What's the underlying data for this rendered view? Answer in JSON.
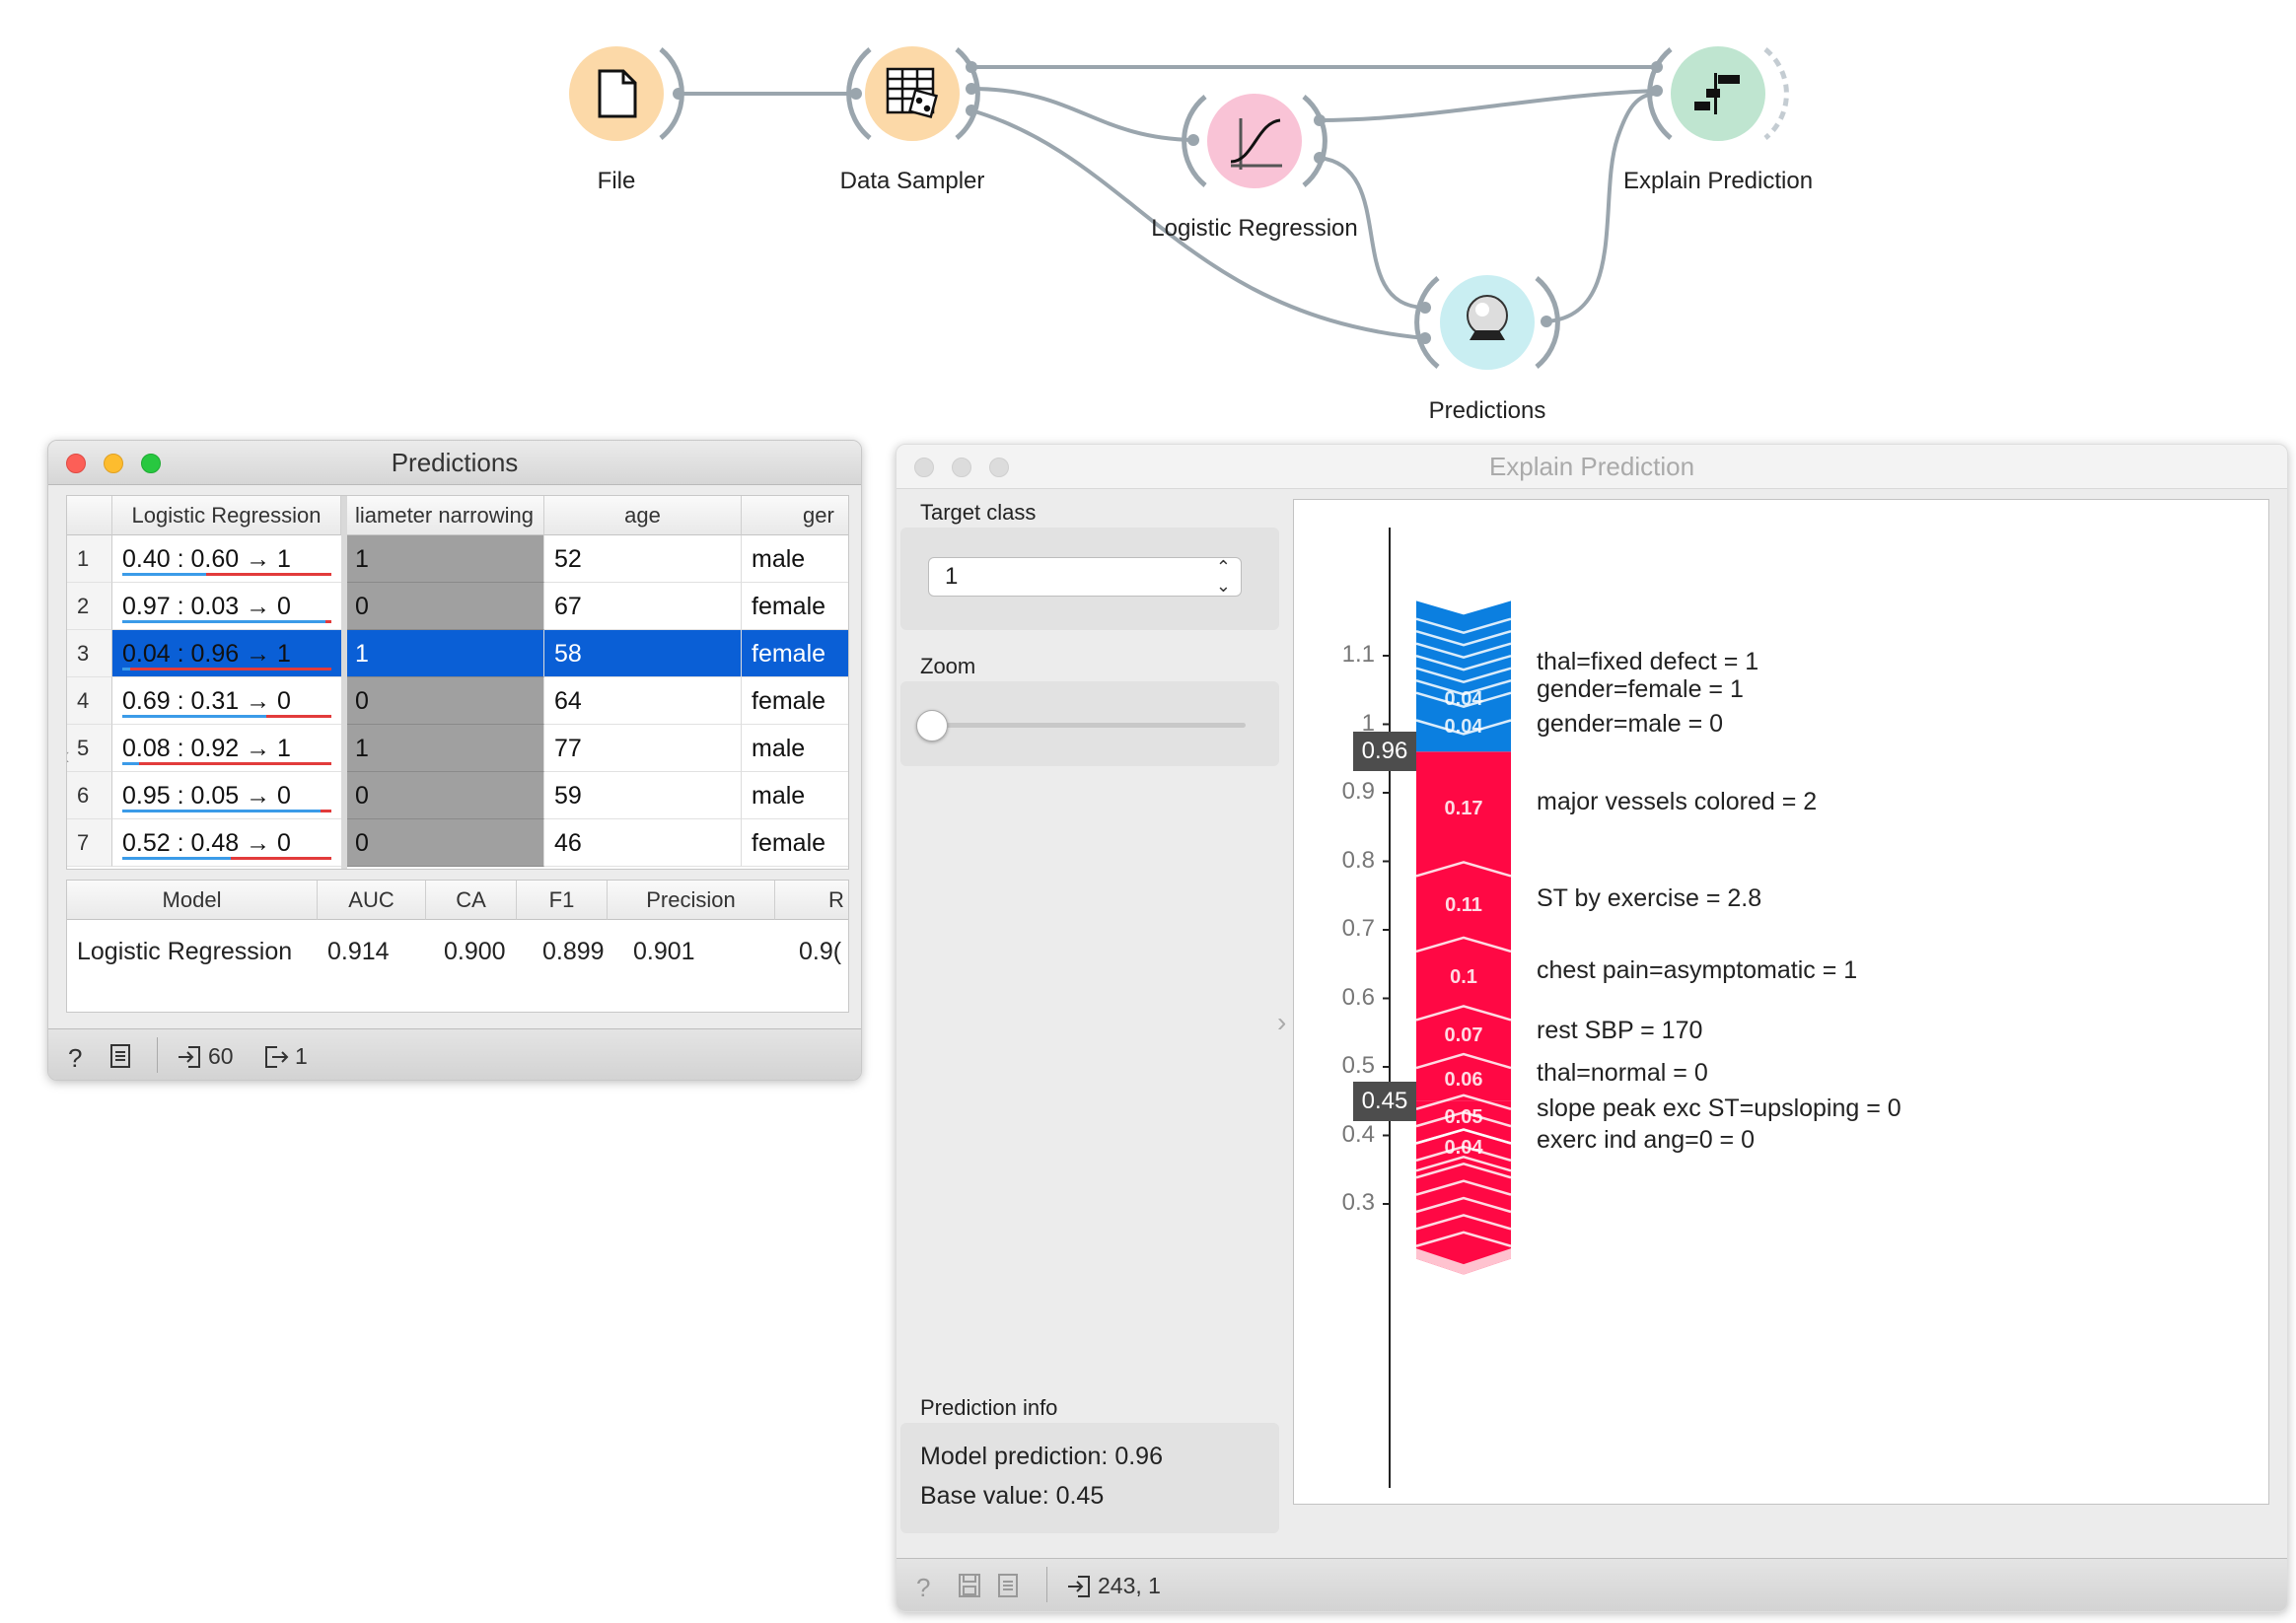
{
  "workflow": {
    "nodes": [
      {
        "label": "File",
        "icon": "file-icon",
        "color": "#fcd9a8"
      },
      {
        "label": "Data Sampler",
        "icon": "data-sampler-icon",
        "color": "#fcd9a8"
      },
      {
        "label": "Logistic Regression",
        "icon": "logistic-regression-icon",
        "color": "#f9c3d6"
      },
      {
        "label": "Predictions",
        "icon": "predictions-icon",
        "color": "#c9eef2"
      },
      {
        "label": "Explain Prediction",
        "icon": "explain-prediction-icon",
        "color": "#bfe5d0"
      }
    ]
  },
  "predictions_window": {
    "title": "Predictions",
    "columns": [
      "Logistic Regression",
      "liameter narrowing",
      "age",
      "ger"
    ],
    "rows": [
      {
        "num": "1",
        "pred": "0.40 : 0.60 → 1",
        "p1": 0.6,
        "target": "1",
        "age": "52",
        "gender": "male"
      },
      {
        "num": "2",
        "pred": "0.97 : 0.03 → 0",
        "p1": 0.03,
        "target": "0",
        "age": "67",
        "gender": "female"
      },
      {
        "num": "3",
        "pred": "0.04 : 0.96 → 1",
        "p1": 0.96,
        "target": "1",
        "age": "58",
        "gender": "female"
      },
      {
        "num": "4",
        "pred": "0.69 : 0.31 → 0",
        "p1": 0.31,
        "target": "0",
        "age": "64",
        "gender": "female"
      },
      {
        "num": "5",
        "pred": "0.08 : 0.92 → 1",
        "p1": 0.92,
        "target": "1",
        "age": "77",
        "gender": "male"
      },
      {
        "num": "6",
        "pred": "0.95 : 0.05 → 0",
        "p1": 0.05,
        "target": "0",
        "age": "59",
        "gender": "male"
      },
      {
        "num": "7",
        "pred": "0.52 : 0.48 → 0",
        "p1": 0.48,
        "target": "0",
        "age": "46",
        "gender": "female"
      }
    ],
    "selected_row": 2,
    "scores": {
      "headers": [
        "Model",
        "AUC",
        "CA",
        "F1",
        "Precision",
        "R"
      ],
      "row": [
        "Logistic Regression",
        "0.914",
        "0.900",
        "0.899",
        "0.901",
        "0.9("
      ]
    },
    "status": {
      "input_count": "60",
      "output_count": "1"
    }
  },
  "explain_window": {
    "title": "Explain Prediction",
    "target_class_label": "Target class",
    "target_class_value": "1",
    "zoom_label": "Zoom",
    "zoom_level": 0.0,
    "prediction_info_label": "Prediction info",
    "model_prediction": "Model prediction: 0.96",
    "base_value": "Base value: 0.45",
    "status_text": "243, 1",
    "colors": {
      "positive": "#ff0844",
      "negative": "#0b7fe0",
      "positive_light": "#ffc2cf"
    },
    "chart_data": {
      "type": "force",
      "axis_ticks": [
        "1.1",
        "1",
        "0.9",
        "0.8",
        "0.7",
        "0.6",
        "0.5",
        "0.4",
        "0.3"
      ],
      "prediction": 0.96,
      "prediction_label": "0.96",
      "base": 0.45,
      "base_label": "0.45",
      "negative_segments": [
        {
          "label": "0.04",
          "value": 0.04
        },
        {
          "label": "0.04",
          "value": 0.04
        }
      ],
      "positive_segments": [
        {
          "label": "0.17",
          "value": 0.17
        },
        {
          "label": "0.11",
          "value": 0.11
        },
        {
          "label": "0.1",
          "value": 0.1
        },
        {
          "label": "0.07",
          "value": 0.07
        },
        {
          "label": "0.06",
          "value": 0.06
        },
        {
          "label": "0.05",
          "value": 0.05
        },
        {
          "label": "0.04",
          "value": 0.04
        }
      ],
      "features": [
        "thal=fixed defect = 1",
        "gender=female = 1",
        "gender=male = 0",
        "major vessels colored = 2",
        "ST by exercise = 2.8",
        "chest pain=asymptomatic = 1",
        "rest SBP = 170",
        "thal=normal = 0",
        "slope peak exc ST=upsloping = 0",
        "exerc ind ang=0 = 0"
      ]
    }
  }
}
